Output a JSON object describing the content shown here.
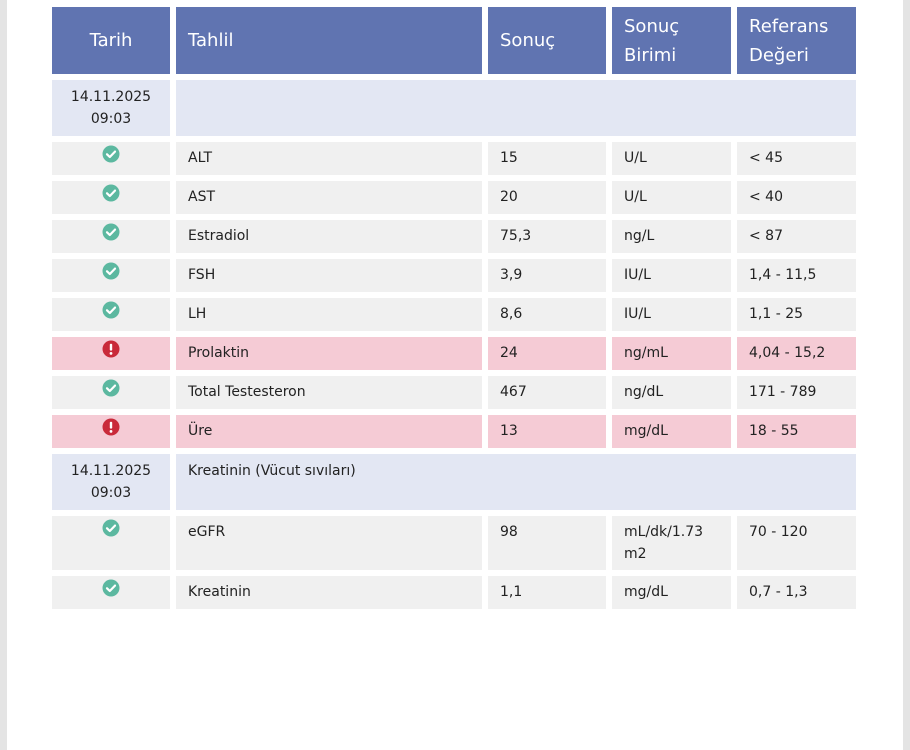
{
  "header": {
    "columns": [
      "Tarih",
      "Tahlil",
      "Sonuç",
      "Sonuç Birimi",
      "Referans Değeri"
    ]
  },
  "groups": [
    {
      "date": "14.11.2025",
      "time": "09:03",
      "rows": [
        {
          "status": "normal",
          "test": "ALT",
          "result": "15",
          "unit": "U/L",
          "reference": "< 45"
        },
        {
          "status": "normal",
          "test": "AST",
          "result": "20",
          "unit": "U/L",
          "reference": "< 40"
        },
        {
          "status": "normal",
          "test": "Estradiol",
          "result": "75,3",
          "unit": "ng/L",
          "reference": "< 87"
        },
        {
          "status": "normal",
          "test": "FSH",
          "result": "3,9",
          "unit": "IU/L",
          "reference": "1,4 - 11,5"
        },
        {
          "status": "normal",
          "test": "LH",
          "result": "8,6",
          "unit": "IU/L",
          "reference": "1,1 - 25"
        },
        {
          "status": "abnormal",
          "test": "Prolaktin",
          "result": "24",
          "unit": "ng/mL",
          "reference": "4,04 - 15,2"
        },
        {
          "status": "normal",
          "test": "Total Testesteron",
          "result": "467",
          "unit": "ng/dL",
          "reference": "171 - 789"
        },
        {
          "status": "abnormal",
          "test": "Üre",
          "result": "13",
          "unit": "mg/dL",
          "reference": "18 - 55"
        }
      ]
    },
    {
      "date": "14.11.2025",
      "time": "09:03",
      "label": "Kreatinin (Vücut sıvıları)",
      "rows": [
        {
          "status": "normal",
          "test": "eGFR",
          "result": "98",
          "unit": "mL/dk/1.73 m2",
          "reference": "70 - 120"
        },
        {
          "status": "normal",
          "test": "Kreatinin",
          "result": "1,1",
          "unit": "mg/dL",
          "reference": "0,7 - 1,3"
        }
      ]
    }
  ]
}
